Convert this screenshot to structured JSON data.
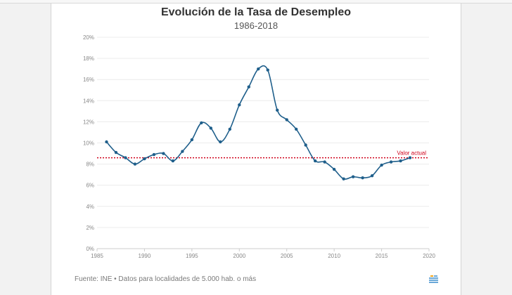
{
  "header": {
    "title": "Evolución de la Tasa de Desempleo",
    "subtitle": "1986-2018"
  },
  "footer": {
    "source": "Fuente: INE • Datos para localidades de 5.000 hab. o más"
  },
  "colors": {
    "line": "#1f5f8b",
    "reference": "#d0021b",
    "grid": "#ececec",
    "tick": "#888888"
  },
  "chart_data": {
    "type": "line",
    "x": [
      1986,
      1987,
      1988,
      1989,
      1990,
      1991,
      1992,
      1993,
      1994,
      1995,
      1996,
      1997,
      1998,
      1999,
      2000,
      2001,
      2002,
      2003,
      2004,
      2005,
      2006,
      2007,
      2008,
      2009,
      2010,
      2011,
      2012,
      2013,
      2014,
      2015,
      2016,
      2017,
      2018
    ],
    "series": [
      {
        "values": [
          10.1,
          9.1,
          8.6,
          8.0,
          8.5,
          8.9,
          9.0,
          8.3,
          9.2,
          10.3,
          11.9,
          11.4,
          10.1,
          11.3,
          13.6,
          15.3,
          17.0,
          16.9,
          13.1,
          12.2,
          11.3,
          9.8,
          8.3,
          8.2,
          7.5,
          6.6,
          6.8,
          6.7,
          6.9,
          7.9,
          8.2,
          8.3,
          8.6
        ]
      }
    ],
    "reference_line": {
      "value": 8.6,
      "label": "Valor actual"
    },
    "xlim": [
      1985,
      2020
    ],
    "ylim": [
      0,
      20
    ],
    "xticks": [
      1985,
      1990,
      1995,
      2000,
      2005,
      2010,
      2015,
      2020
    ],
    "yticks": [
      0,
      2,
      4,
      6,
      8,
      10,
      12,
      14,
      16,
      18,
      20
    ],
    "ytick_suffix": "%",
    "grid": true,
    "xlabel": "",
    "ylabel": ""
  }
}
